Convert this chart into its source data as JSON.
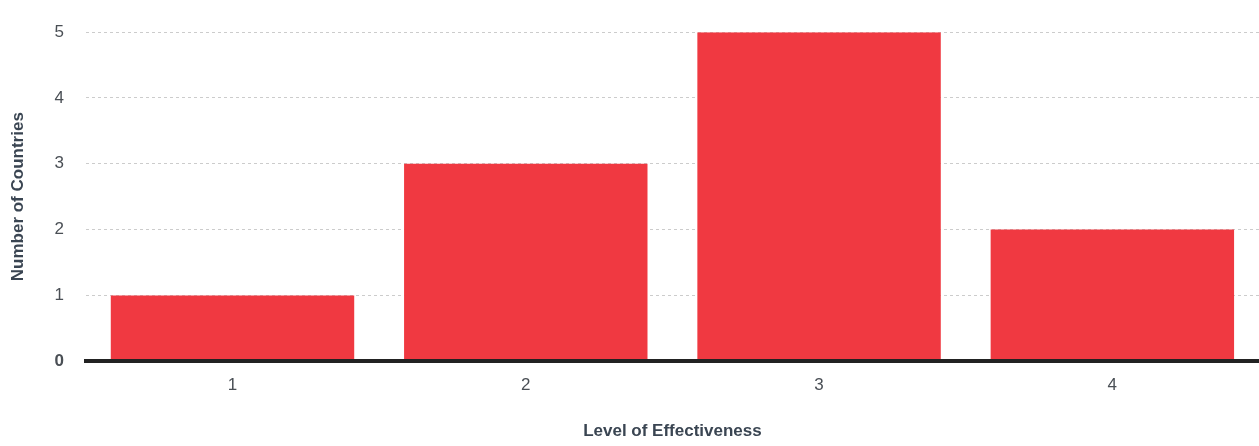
{
  "chart_data": {
    "type": "bar",
    "xlabel": "Level of Effectiveness",
    "ylabel": "Number of Countries",
    "categories": [
      "1",
      "2",
      "3",
      "4"
    ],
    "values": [
      1,
      3,
      5,
      2
    ],
    "color": "#f03941",
    "ylim": [
      0,
      5
    ],
    "yticks": [
      0,
      1,
      2,
      3,
      4,
      5
    ],
    "grid": "y",
    "legend": false
  }
}
